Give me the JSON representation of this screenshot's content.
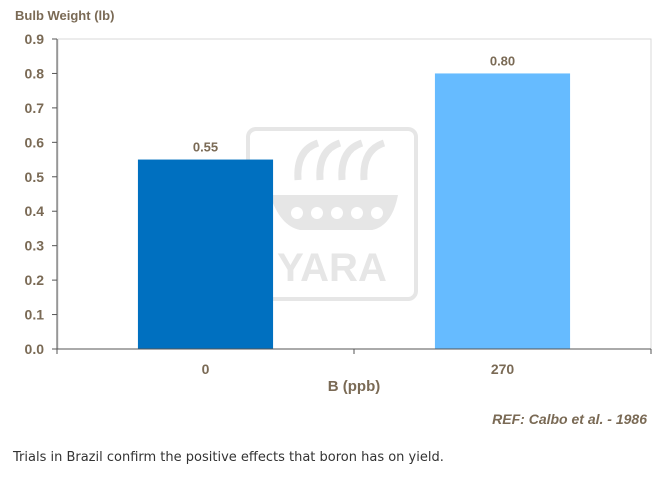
{
  "colors": {
    "bar_0": "#0070c0",
    "bar_1": "#66bbff",
    "text": "#7a6a55",
    "axis": "#555555",
    "plot_border": "#d9d9d9",
    "watermark": "#e6e6e6"
  },
  "watermark": {
    "text": "YARA",
    "icon": "yara-viking-ship-logo"
  },
  "reference": "REF: Calbo et al. - 1986",
  "caption": "Trials in Brazil confirm the positive effects that boron has on yield.",
  "chart_data": {
    "type": "bar",
    "title": "",
    "ylabel": "Bulb Weight (lb)",
    "xlabel": "B (ppb)",
    "categories": [
      "0",
      "270"
    ],
    "values": [
      0.55,
      0.8
    ],
    "data_labels": [
      "0.55",
      "0.80"
    ],
    "ylim": [
      0,
      0.9
    ],
    "yticks": [
      "0.0",
      "0.1",
      "0.2",
      "0.3",
      "0.4",
      "0.5",
      "0.6",
      "0.7",
      "0.8",
      "0.9"
    ],
    "grid": false,
    "legend": "none"
  }
}
